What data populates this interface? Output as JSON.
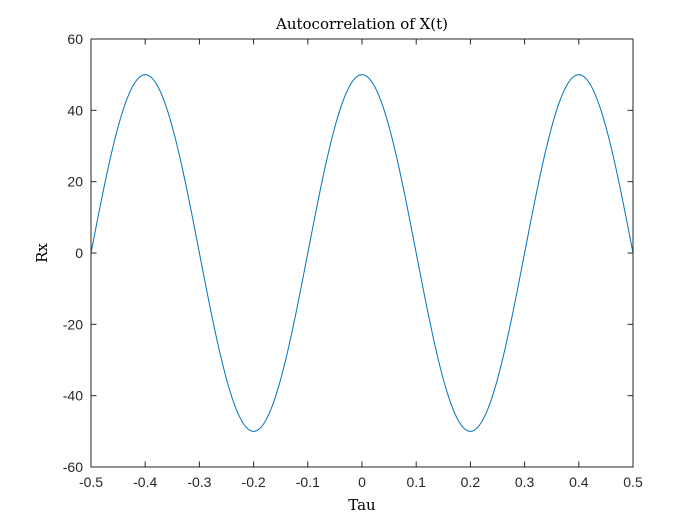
{
  "chart_data": {
    "type": "line",
    "title": "Autocorrelation of X(t)",
    "xlabel": "Tau",
    "ylabel": "Rx",
    "xlim": [
      -0.5,
      0.5
    ],
    "ylim": [
      -60,
      60
    ],
    "grid": false,
    "function": "Rx = 50 cos(2*pi*2.5*tau)",
    "x_ticks": [
      -0.5,
      -0.4,
      -0.3,
      -0.2,
      -0.1,
      0,
      0.1,
      0.2,
      0.3,
      0.4,
      0.5
    ],
    "x_tick_labels": [
      "-0.5",
      "-0.4",
      "-0.3",
      "-0.2",
      "-0.1",
      "0",
      "0.1",
      "0.2",
      "0.3",
      "0.4",
      "0.5"
    ],
    "y_ticks": [
      -60,
      -40,
      -20,
      0,
      20,
      40,
      60
    ],
    "y_tick_labels": [
      "-60",
      "-40",
      "-20",
      "0",
      "20",
      "40",
      "60"
    ],
    "line_color": "#0072BD",
    "series": [
      {
        "x": [
          -0.5,
          -0.45,
          -0.4,
          -0.35,
          -0.3,
          -0.25,
          -0.2,
          -0.15,
          -0.1,
          -0.05,
          0,
          0.05,
          0.1,
          0.15,
          0.2,
          0.25,
          0.3,
          0.35,
          0.4,
          0.45,
          0.5
        ],
        "values": [
          0,
          35.36,
          50,
          35.36,
          0,
          -35.36,
          -50,
          -35.36,
          0,
          35.36,
          50,
          35.36,
          0,
          -35.36,
          -50,
          -35.36,
          0,
          35.36,
          50,
          35.36,
          0
        ]
      }
    ]
  }
}
